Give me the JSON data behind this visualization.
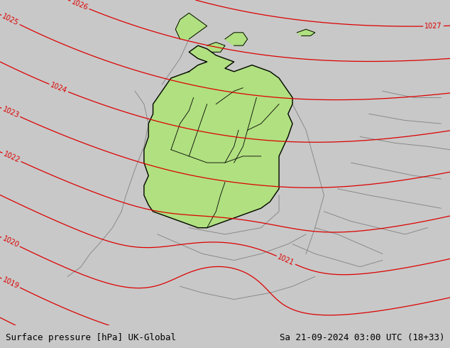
{
  "title_left": "Surface pressure [hPa] UK-Global",
  "title_right": "Sa 21-09-2024 03:00 UTC (18+33)",
  "ocean_color": "#c8c8c8",
  "land_color": "#c8f0a0",
  "germany_color": "#b0e080",
  "border_color_main": "#000000",
  "border_color_other": "#808080",
  "contour_color": "#dd0000",
  "bottom_bar_color": "#d0d0d0",
  "bottom_text_color": "#000000",
  "figsize": [
    6.34,
    4.9
  ],
  "dpi": 100,
  "label_fontsize": 7,
  "title_fontsize": 9,
  "contour_linewidth": 0.9
}
